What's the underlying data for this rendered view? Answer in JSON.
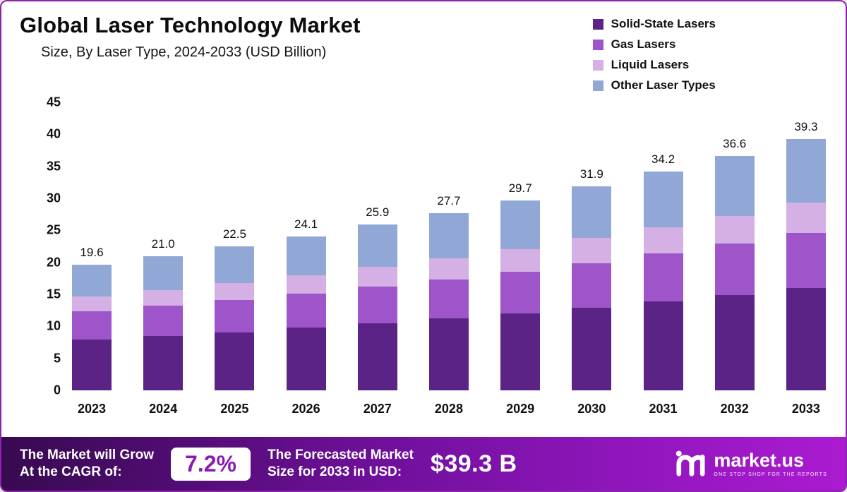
{
  "header": {
    "title": "Global Laser Technology Market",
    "subtitle": "Size, By Laser Type, 2024-2033 (USD Billion)"
  },
  "chart_data": {
    "type": "bar",
    "stacked": true,
    "title": "Global Laser Technology Market Size, By Laser Type, 2024-2033 (USD Billion)",
    "xlabel": "",
    "ylabel": "",
    "ylim": [
      0,
      45
    ],
    "yticks": [
      0,
      5,
      10,
      15,
      20,
      25,
      30,
      35,
      40,
      45
    ],
    "grid": false,
    "legend_position": "top-right",
    "categories": [
      "2023",
      "2024",
      "2025",
      "2026",
      "2027",
      "2028",
      "2029",
      "2030",
      "2031",
      "2032",
      "2033"
    ],
    "series": [
      {
        "name": "Solid-State Lasers",
        "color": "#5b2385",
        "values": [
          7.9,
          8.5,
          9.1,
          9.8,
          10.5,
          11.2,
          12.0,
          12.9,
          13.9,
          14.9,
          16.0
        ]
      },
      {
        "name": "Gas Lasers",
        "color": "#9d55c9",
        "values": [
          4.4,
          4.7,
          5.0,
          5.3,
          5.7,
          6.1,
          6.5,
          7.0,
          7.5,
          8.0,
          8.6
        ]
      },
      {
        "name": "Liquid Lasers",
        "color": "#d5b0e4",
        "values": [
          2.4,
          2.5,
          2.7,
          2.9,
          3.1,
          3.3,
          3.6,
          3.9,
          4.1,
          4.4,
          4.7
        ]
      },
      {
        "name": "Other Laser Types",
        "color": "#91a8d6",
        "values": [
          4.9,
          5.3,
          5.7,
          6.1,
          6.6,
          7.1,
          7.6,
          8.1,
          8.7,
          9.3,
          10.0
        ]
      }
    ],
    "totals": [
      19.6,
      21.0,
      22.5,
      24.1,
      25.9,
      27.7,
      29.7,
      31.9,
      34.2,
      36.6,
      39.3
    ]
  },
  "footer": {
    "cagr_label_lines": [
      "The Market will Grow",
      "At the CAGR of:"
    ],
    "cagr_value": "7.2%",
    "forecast_label_lines": [
      "The Forecasted Market",
      "Size for 2033 in USD:"
    ],
    "forecast_value": "$39.3 B",
    "brand": "market.us",
    "brand_tagline": "One Stop Shop For The Reports"
  },
  "colors": {
    "border": "#8d22ad",
    "footer_gradient_start": "#370a50",
    "footer_gradient_end": "#ab1bd1",
    "cagr_text": "#8a1cb0"
  }
}
